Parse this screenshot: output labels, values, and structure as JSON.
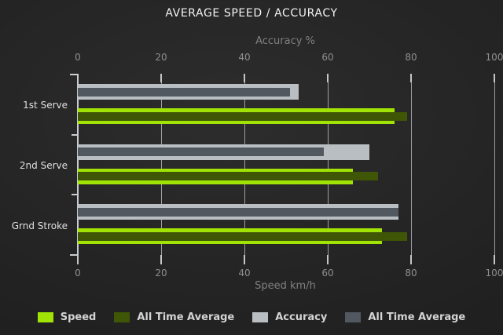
{
  "title": "AVERAGE SPEED / ACCURACY",
  "colors": {
    "background": "#242424",
    "speed_green": "#a2e306",
    "all_time_avg_green": "#3e5606",
    "accuracy_gray": "#b8bec2",
    "all_time_avg_gray": "#525860",
    "grid": "#b0b4b6",
    "text_muted": "#8f8f8f"
  },
  "chart_data": {
    "type": "bar",
    "orientation": "horizontal",
    "title": "AVERAGE SPEED / ACCURACY",
    "categories": [
      "1st Serve",
      "2nd Serve",
      "Grnd Stroke"
    ],
    "series": [
      {
        "name": "Speed",
        "axis": "bottom",
        "color": "#a2e306",
        "thickness": "thick",
        "values": [
          76,
          66,
          73
        ]
      },
      {
        "name": "All Time Average",
        "axis": "bottom",
        "color": "#3e5606",
        "thickness": "thin",
        "values": [
          79,
          72,
          79
        ]
      },
      {
        "name": "Accuracy",
        "axis": "top",
        "color": "#b8bec2",
        "thickness": "thick",
        "values": [
          53,
          70,
          77
        ]
      },
      {
        "name": "All Time Average",
        "axis": "top",
        "color": "#525860",
        "thickness": "thin",
        "values": [
          51,
          59,
          77
        ]
      }
    ],
    "top_axis": {
      "label": "Accuracy %",
      "ticks": [
        0,
        20,
        40,
        60,
        80,
        100
      ],
      "range": [
        0,
        100
      ]
    },
    "bottom_axis": {
      "label": "Speed km/h",
      "ticks": [
        0,
        20,
        40,
        60,
        80,
        100
      ],
      "range": [
        0,
        100
      ]
    },
    "grid": true,
    "legend_position": "bottom",
    "legend_entries": [
      "Speed",
      "All Time Average",
      "Accuracy",
      "All Time Average"
    ]
  }
}
